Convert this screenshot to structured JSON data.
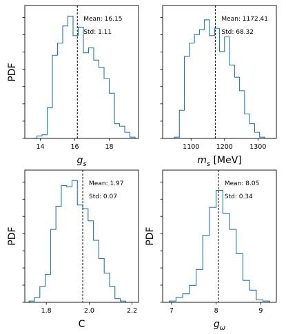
{
  "chart_data": [
    {
      "type": "histogram",
      "xlabel_base": "g",
      "xlabel_sub": "s",
      "xlabel_suffix": "",
      "ylabel": "PDF",
      "xlim": [
        13.1,
        19.7
      ],
      "xticks": [
        14,
        16,
        18
      ],
      "bin_edges": [
        13.5,
        13.8,
        14.1,
        14.4,
        14.7,
        15.0,
        15.3,
        15.6,
        15.9,
        16.2,
        16.5,
        16.8,
        17.1,
        17.4,
        17.7,
        18.0,
        18.3,
        18.6,
        18.9,
        19.2,
        19.5
      ],
      "values": [
        0.0,
        0.02,
        0.03,
        0.25,
        0.68,
        0.78,
        0.92,
        1.0,
        0.84,
        0.91,
        0.7,
        0.74,
        0.64,
        0.58,
        0.49,
        0.37,
        0.12,
        0.1,
        0.05,
        0.01
      ],
      "mean": 16.15,
      "mean_label": "Mean: 16.15",
      "std_label": "Std: 1.11"
    },
    {
      "type": "histogram",
      "xlabel_base": "m",
      "xlabel_sub": "s",
      "xlabel_suffix": " [MeV]",
      "ylabel": "",
      "xlim": [
        1015,
        1355
      ],
      "xticks": [
        1100,
        1200,
        1300
      ],
      "bin_edges": [
        1035,
        1050,
        1065,
        1080,
        1095,
        1110,
        1125,
        1140,
        1155,
        1170,
        1185,
        1200,
        1215,
        1230,
        1245,
        1260,
        1275,
        1290,
        1305,
        1320,
        1335,
        1350
      ],
      "values": [
        0.0,
        0.01,
        0.23,
        0.67,
        0.78,
        0.85,
        0.89,
        0.97,
        0.84,
        0.9,
        0.71,
        0.83,
        0.6,
        0.5,
        0.39,
        0.2,
        0.12,
        0.05,
        0.01,
        0.0,
        0.0
      ],
      "mean": 1172.41,
      "mean_label": "Mean: 1172.41",
      "std_label": "Std: 68.32"
    },
    {
      "type": "histogram",
      "xlabel_base": "C",
      "xlabel_sub": "",
      "xlabel_suffix": "",
      "ylabel": "PDF",
      "xlim": [
        1.7,
        2.23
      ],
      "xticks": [
        1.8,
        2.0,
        2.2
      ],
      "xtick_labels": [
        "1.8",
        "2.0",
        "2.2"
      ],
      "bin_edges": [
        1.72,
        1.745,
        1.77,
        1.795,
        1.82,
        1.845,
        1.87,
        1.895,
        1.92,
        1.945,
        1.97,
        1.995,
        2.02,
        2.045,
        2.07,
        2.095,
        2.12,
        2.145,
        2.17,
        2.195
      ],
      "values": [
        0.01,
        0.04,
        0.13,
        0.23,
        0.6,
        0.79,
        0.96,
        0.95,
        1.0,
        0.8,
        0.77,
        0.67,
        0.51,
        0.36,
        0.24,
        0.13,
        0.03,
        0.01,
        0.0
      ],
      "mean": 1.97,
      "mean_label": "Mean: 1.97",
      "std_label": "Std: 0.07"
    },
    {
      "type": "histogram",
      "xlabel_base": "g",
      "xlabel_sub": "ω",
      "xlabel_suffix": "",
      "ylabel": "PDF",
      "xlim": [
        6.8,
        9.35
      ],
      "xticks": [
        7,
        8,
        9
      ],
      "bin_edges": [
        6.95,
        7.1,
        7.25,
        7.4,
        7.55,
        7.7,
        7.85,
        8.0,
        8.15,
        8.3,
        8.45,
        8.6,
        8.75,
        8.9,
        9.05,
        9.2
      ],
      "values": [
        0.01,
        0.04,
        0.07,
        0.14,
        0.27,
        0.55,
        0.78,
        0.92,
        0.73,
        0.6,
        0.4,
        0.18,
        0.1,
        0.02,
        0.01
      ],
      "mean": 8.05,
      "mean_label": "Mean: 8.05",
      "std_label": "Std: 0.34"
    }
  ]
}
